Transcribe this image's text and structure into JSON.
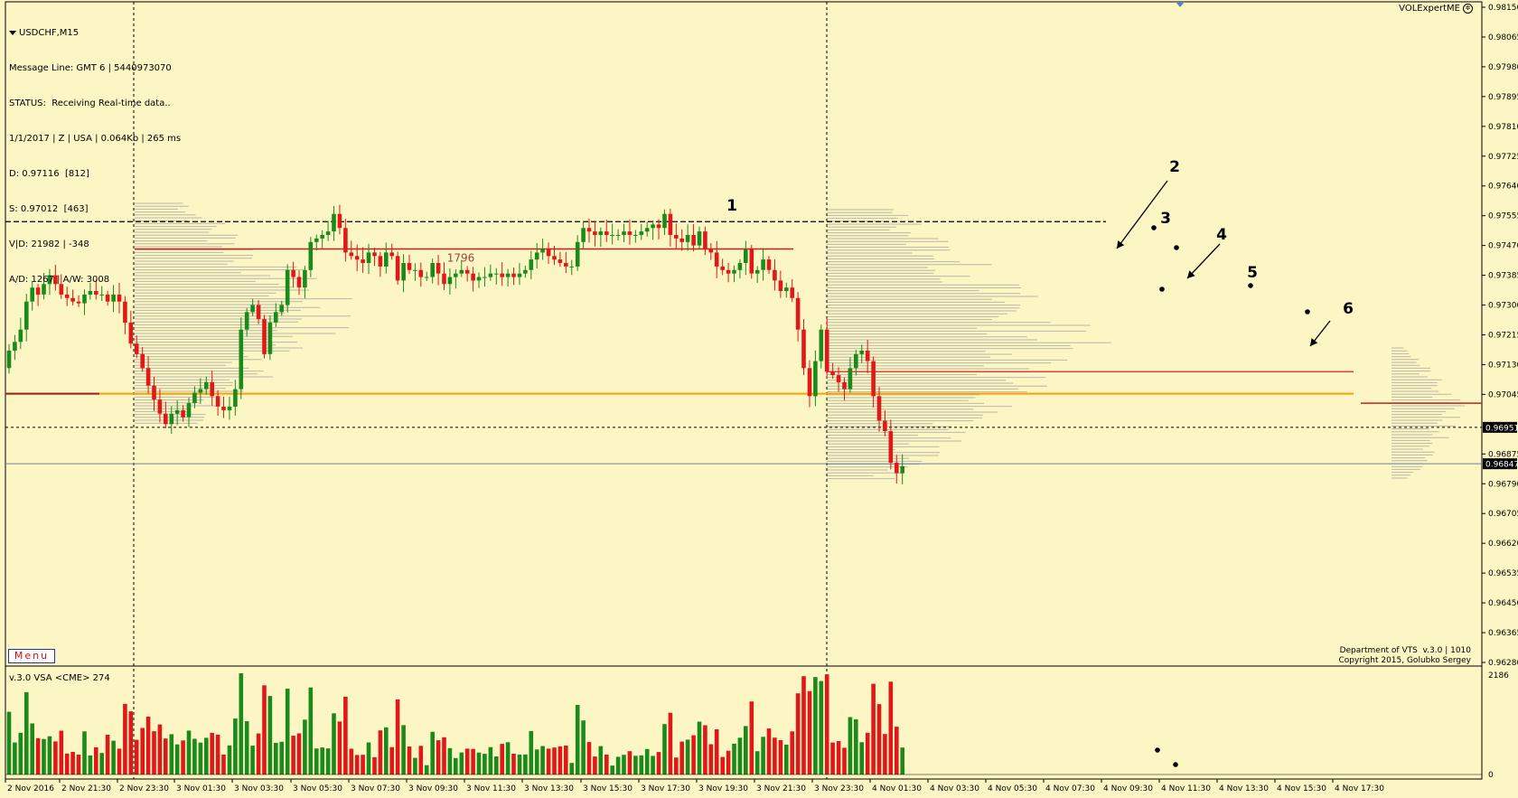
{
  "header": {
    "symbol": "USDCHF,M15",
    "lines": [
      "Message Line: GMT 6 | 5440973070",
      "STATUS:  Receiving Real-time data..",
      "1/1/2017 | Z | USA | 0.064Kb | 265 ms",
      "D: 0.97116  [812]",
      "S: 0.97012  [463]",
      "V|D: 21982 | -348",
      "A/D: 1267 | A/W: 3008"
    ]
  },
  "brand": "VOLExpertME",
  "menu_label": "Menu",
  "copyright": [
    "Department of VTS  v.3.0 | 1010",
    "Copyright 2015, Golubko Sergey"
  ],
  "volume_label": "v.3.0 VSA <CME> 274",
  "colors": {
    "background": "#fcf6c4",
    "bull": "#1a8a1a",
    "bear": "#e01818",
    "orange_level": "#ffa000",
    "red_level": "#c02020",
    "grid_dash": "#000000"
  },
  "chart_data": {
    "type": "candlestick",
    "symbol": "USDCHF",
    "timeframe": "M15",
    "ylim": [
      0.9628,
      0.9815
    ],
    "y_ticks": [
      0.9815,
      0.98065,
      0.9798,
      0.97895,
      0.9781,
      0.97725,
      0.9764,
      0.97555,
      0.9747,
      0.97385,
      0.973,
      0.97215,
      0.9713,
      0.97045,
      0.96875,
      0.9679,
      0.96705,
      0.9662,
      0.96535,
      0.9645,
      0.96365,
      0.9628
    ],
    "price_tags": [
      {
        "value": 0.96951,
        "label": "0.96951",
        "style": "dashed"
      },
      {
        "value": 0.96847,
        "label": "0.96847",
        "style": "solid"
      }
    ],
    "x_labels": [
      "2 Nov 2016",
      "2 Nov 21:30",
      "2 Nov 23:30",
      "3 Nov 01:30",
      "3 Nov 03:30",
      "3 Nov 05:30",
      "3 Nov 07:30",
      "3 Nov 09:30",
      "3 Nov 11:30",
      "3 Nov 13:30",
      "3 Nov 15:30",
      "3 Nov 17:30",
      "3 Nov 19:30",
      "3 Nov 21:30",
      "3 Nov 23:30",
      "4 Nov 01:30",
      "4 Nov 03:30",
      "4 Nov 05:30",
      "4 Nov 07:30",
      "4 Nov 09:30",
      "4 Nov 11:30",
      "4 Nov 13:30",
      "4 Nov 15:30",
      "4 Nov 17:30"
    ],
    "levels": [
      {
        "value": 0.97538,
        "kind": "dashed",
        "color": "#000000"
      },
      {
        "value": 0.9746,
        "kind": "solid",
        "color": "#c02020",
        "label": "1796"
      },
      {
        "value": 0.97047,
        "kind": "solid",
        "color": "#ffa000"
      },
      {
        "value": 0.9711,
        "kind": "solid",
        "color": "#e04040"
      },
      {
        "value": 0.9702,
        "kind": "solid",
        "color": "#c02020"
      }
    ],
    "annotations": [
      "1",
      "2",
      "3",
      "4",
      "5",
      "6"
    ],
    "volume_axis": {
      "max": 2186,
      "labels": [
        "2186",
        "0"
      ]
    },
    "closes": [
      0.9717,
      0.97195,
      0.9723,
      0.9731,
      0.9735,
      0.9733,
      0.9736,
      0.97385,
      0.9736,
      0.9733,
      0.9732,
      0.9731,
      0.97305,
      0.9733,
      0.9734,
      0.9733,
      0.9733,
      0.9731,
      0.9733,
      0.9731,
      0.9725,
      0.9719,
      0.9716,
      0.9712,
      0.9707,
      0.9703,
      0.9699,
      0.9696,
      0.9699,
      0.97,
      0.9698,
      0.9702,
      0.9705,
      0.9706,
      0.9708,
      0.9704,
      0.9701,
      0.97,
      0.9701,
      0.9706,
      0.9723,
      0.9728,
      0.973,
      0.9726,
      0.9716,
      0.9725,
      0.9728,
      0.973,
      0.974,
      0.9738,
      0.9735,
      0.974,
      0.9748,
      0.9749,
      0.975,
      0.9751,
      0.9756,
      0.9752,
      0.9745,
      0.9744,
      0.9743,
      0.9742,
      0.9745,
      0.9744,
      0.9741,
      0.9745,
      0.9744,
      0.9737,
      0.9742,
      0.974,
      0.974,
      0.9738,
      0.9738,
      0.9742,
      0.9739,
      0.9736,
      0.9738,
      0.9739,
      0.974,
      0.9739,
      0.9737,
      0.9738,
      0.9738,
      0.9739,
      0.9739,
      0.9738,
      0.9739,
      0.9738,
      0.9739,
      0.974,
      0.9743,
      0.9745,
      0.9746,
      0.9744,
      0.9743,
      0.9742,
      0.9741,
      0.9741,
      0.9748,
      0.9752,
      0.9751,
      0.975,
      0.9751,
      0.975,
      0.975,
      0.975,
      0.9751,
      0.975,
      0.975,
      0.9751,
      0.9752,
      0.9753,
      0.9752,
      0.9756,
      0.975,
      0.9749,
      0.9748,
      0.975,
      0.9747,
      0.9751,
      0.9746,
      0.9745,
      0.9741,
      0.974,
      0.9739,
      0.974,
      0.9742,
      0.9746,
      0.9739,
      0.974,
      0.9743,
      0.974,
      0.9737,
      0.9734,
      0.9735,
      0.9732,
      0.9723,
      0.9712,
      0.9704,
      0.9714,
      0.9723,
      0.9711,
      0.971,
      0.9708,
      0.9706,
      0.9712,
      0.9716,
      0.9717,
      0.9714,
      0.9704,
      0.9697,
      0.9694,
      0.9685,
      0.9682,
      0.9684
    ]
  },
  "axis_labels": {
    "y": [
      "0.98150",
      "0.98065",
      "0.97980",
      "0.97895",
      "0.97810",
      "0.97725",
      "0.97640",
      "0.97555",
      "0.97470",
      "0.97385",
      "0.97300",
      "0.97215",
      "0.97130",
      "0.97045",
      "0.96875",
      "0.96790",
      "0.96705",
      "0.96620",
      "0.96535",
      "0.96450",
      "0.96365",
      "0.96280"
    ]
  }
}
